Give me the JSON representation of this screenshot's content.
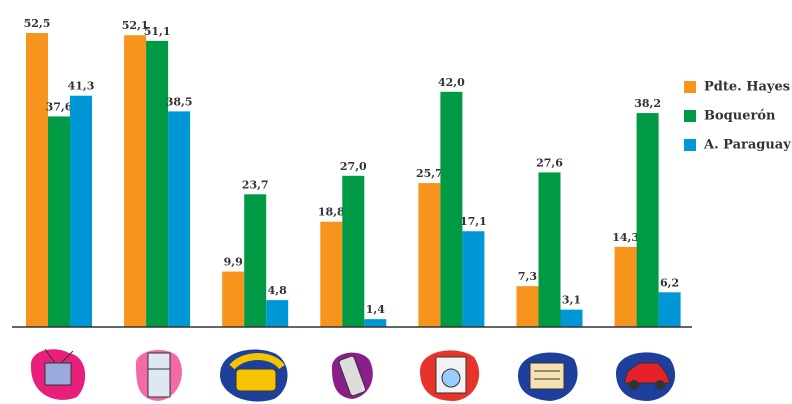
{
  "chart_data": {
    "type": "bar",
    "categories": [
      null,
      null,
      null,
      null,
      null,
      null,
      null
    ],
    "series": [
      {
        "name": "Pdte. Hayes",
        "color": "#f7941d",
        "values": [
          52.5,
          52.1,
          9.9,
          18.8,
          25.7,
          7.3,
          14.3
        ],
        "value_labels": [
          "52,5",
          "52,1",
          "9,9",
          "18,8",
          "25,7",
          "7,3",
          "14,3"
        ]
      },
      {
        "name": "Boquerón",
        "color": "#009a44",
        "values": [
          37.6,
          51.1,
          23.7,
          27.0,
          42.0,
          27.6,
          38.2
        ],
        "value_labels": [
          "37,6",
          "51,1",
          "23,7",
          "27,0",
          "42,0",
          "27,6",
          "38,2"
        ]
      },
      {
        "name": "A. Paraguay",
        "color": "#0097d7",
        "values": [
          41.3,
          38.5,
          4.8,
          1.4,
          17.1,
          3.1,
          6.2
        ],
        "value_labels": [
          "41,3",
          "38,5",
          "4,8",
          "1,4",
          "17,1",
          "3,1",
          "6,2"
        ]
      }
    ],
    "legend": "right"
  }
}
